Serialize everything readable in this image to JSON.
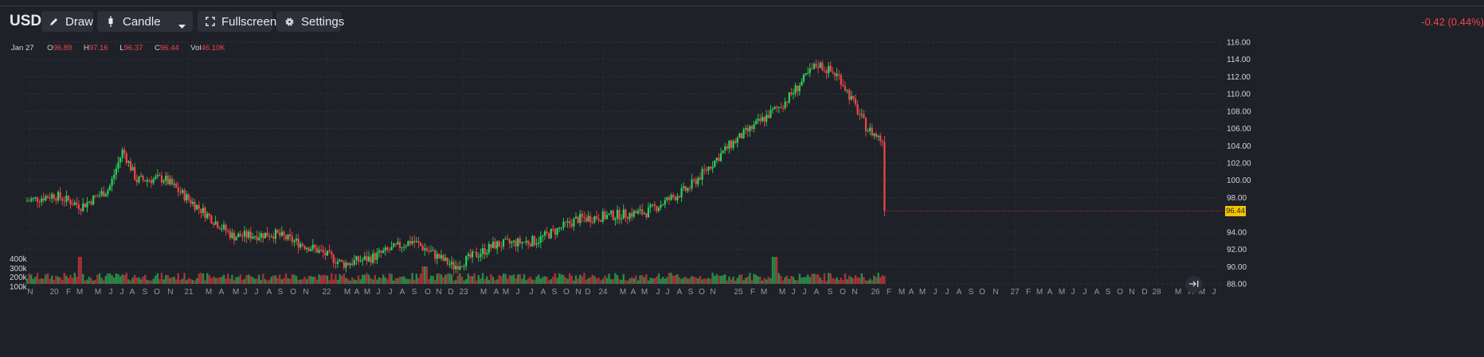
{
  "header": {
    "symbol": "USD",
    "draw_label": "Draw",
    "chart_type_label": "Candle",
    "fullscreen_label": "Fullscreen",
    "settings_label": "Settings",
    "change": "-0.42 (0.44%)"
  },
  "ohlc": {
    "date": "Jan 27",
    "o_label": "O",
    "o": "96.89",
    "h_label": "H",
    "h": "97.16",
    "l_label": "L",
    "l": "96.37",
    "c_label": "C",
    "c": "96.44",
    "vol_label": "Vol",
    "vol": "46.10K"
  },
  "last_price": "96.44",
  "colors": {
    "up": "#2bd25a",
    "down": "#f0454a",
    "tag": "#f5c400",
    "bg": "#1f2128"
  },
  "icons": {
    "draw": "pencil-icon",
    "candle": "candlestick-icon",
    "dropdown": "chevron-down-icon",
    "fullscreen": "expand-icon",
    "settings": "gear-icon",
    "scroll": "scroll-to-latest-icon"
  },
  "chart_data": {
    "type": "candlestick",
    "y_ticks": [
      "116.00",
      "114.00",
      "112.00",
      "110.00",
      "108.00",
      "106.00",
      "104.00",
      "102.00",
      "100.00",
      "98.00",
      "94.00",
      "92.00",
      "90.00",
      "88.00"
    ],
    "ylim": [
      88,
      116
    ],
    "volume_ticks": [
      "400k",
      "300k",
      "200k",
      "100k"
    ],
    "x_ticks": [
      "N",
      "20",
      "F",
      "M",
      "M",
      "J",
      "J",
      "A",
      "S",
      "O",
      "N",
      "21",
      "M",
      "A",
      "M",
      "J",
      "J",
      "A",
      "S",
      "O",
      "N",
      "22",
      "M",
      "A",
      "M",
      "J",
      "J",
      "A",
      "S",
      "O",
      "N",
      "D",
      "23",
      "M",
      "A",
      "M",
      "J",
      "J",
      "A",
      "S",
      "O",
      "N",
      "D",
      "24",
      "M",
      "A",
      "M",
      "J",
      "J",
      "A",
      "S",
      "O",
      "N",
      "25",
      "F",
      "M",
      "M",
      "J",
      "J",
      "A",
      "S",
      "O",
      "N",
      "26",
      "F",
      "M",
      "A",
      "M",
      "J",
      "J",
      "A",
      "S",
      "O",
      "N",
      "27",
      "F",
      "M",
      "A",
      "M",
      "J",
      "J",
      "A",
      "S",
      "O",
      "N",
      "D",
      "28",
      "M",
      "A",
      "M",
      "J"
    ],
    "close_path_approx": [
      [
        2019.85,
        97.6
      ],
      [
        2019.95,
        98.3
      ],
      [
        2020.05,
        97.0
      ],
      [
        2020.15,
        99.0
      ],
      [
        2020.2,
        103.5
      ],
      [
        2020.25,
        100.0
      ],
      [
        2020.35,
        100.2
      ],
      [
        2020.45,
        97.5
      ],
      [
        2020.6,
        93.5
      ],
      [
        2020.75,
        93.8
      ],
      [
        2020.9,
        92.0
      ],
      [
        2021.0,
        90.3
      ],
      [
        2021.1,
        91.0
      ],
      [
        2021.25,
        93.0
      ],
      [
        2021.4,
        90.0
      ],
      [
        2021.55,
        92.5
      ],
      [
        2021.7,
        93.0
      ],
      [
        2021.85,
        95.5
      ],
      [
        2022.0,
        96.0
      ],
      [
        2022.1,
        96.3
      ],
      [
        2022.25,
        99.0
      ],
      [
        2022.4,
        104.0
      ],
      [
        2022.5,
        106.5
      ],
      [
        2022.6,
        109.0
      ],
      [
        2022.72,
        113.5
      ],
      [
        2022.8,
        112.0
      ],
      [
        2022.9,
        106.0
      ],
      [
        2023.0,
        103.5
      ],
      [
        2023.1,
        102.0
      ],
      [
        2023.2,
        105.2
      ],
      [
        2023.3,
        102.5
      ],
      [
        2023.4,
        101.0
      ],
      [
        2023.5,
        104.3
      ],
      [
        2023.6,
        101.3
      ],
      [
        2023.7,
        103.5
      ],
      [
        2023.8,
        106.0
      ],
      [
        2023.95,
        105.5
      ],
      [
        2024.05,
        101.5
      ],
      [
        2024.2,
        103.8
      ],
      [
        2024.35,
        104.8
      ],
      [
        2024.45,
        105.8
      ],
      [
        2024.55,
        104.8
      ],
      [
        2024.65,
        103.3
      ],
      [
        2024.75,
        101.0
      ],
      [
        2024.85,
        104.5
      ],
      [
        2025.0,
        108.0
      ],
      [
        2025.05,
        109.5
      ],
      [
        2025.15,
        107.5
      ],
      [
        2025.25,
        104.0
      ],
      [
        2025.35,
        99.5
      ],
      [
        2025.5,
        97.5
      ],
      [
        2025.6,
        98.0
      ],
      [
        2025.7,
        97.3
      ],
      [
        2025.85,
        99.5
      ],
      [
        2025.95,
        98.5
      ],
      [
        2026.0,
        99.0
      ],
      [
        2026.08,
        96.44
      ]
    ],
    "last": 96.44
  }
}
